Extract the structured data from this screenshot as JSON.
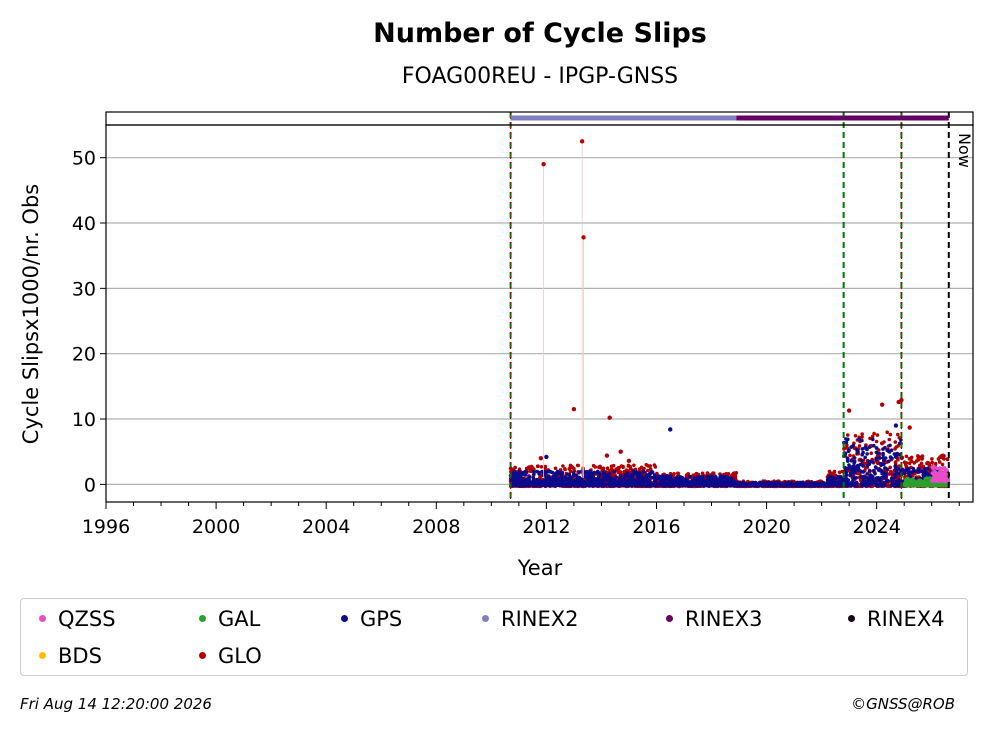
{
  "footer": {
    "timestamp": "Fri Aug 14 12:20:00 2026",
    "credit": "©GNSS@ROB"
  },
  "colors": {
    "QZSS": "#e84cc8",
    "GAL": "#2ca02c",
    "GPS": "#0b0b8c",
    "RINEX2": "#8080c0",
    "RINEX3": "#660066",
    "RINEX4": "#1a001a",
    "BDS": "#ffbf00",
    "GLO": "#b30000",
    "event_line": "#007700",
    "now_line": "#000000"
  },
  "chart_data": {
    "type": "scatter",
    "title": "Number of Cycle Slips",
    "subtitle": "FOAG00REU - IPGP-GNSS",
    "xlabel": "Year",
    "ylabel": "Cycle Slipsx1000/nr. Obs",
    "xlim": [
      1996,
      2027.5
    ],
    "ylim": [
      -2.7,
      55
    ],
    "xticks": [
      1996,
      2000,
      2004,
      2008,
      2012,
      2016,
      2020,
      2024
    ],
    "yticks": [
      0,
      10,
      20,
      30,
      40,
      50
    ],
    "grid": "horizontal",
    "legend_position": "bottom",
    "legend": [
      "QZSS",
      "GAL",
      "GPS",
      "RINEX2",
      "RINEX3",
      "RINEX4",
      "BDS",
      "GLO"
    ],
    "now_label": "Now",
    "now_x": 2026.62,
    "event_lines": [
      {
        "x": 2010.7,
        "style": "dashed",
        "color": "event_line"
      },
      {
        "x": 2022.8,
        "style": "dashed",
        "color": "event_line"
      },
      {
        "x": 2024.9,
        "style": "dashed",
        "color": "event_line"
      }
    ],
    "rinex_bars": [
      {
        "name": "RINEX2",
        "start": 2010.7,
        "end": 2018.9
      },
      {
        "name": "RINEX3",
        "start": 2018.9,
        "end": 2026.62
      }
    ],
    "outliers": [
      {
        "series": "GLO",
        "x": 2011.9,
        "y": 49
      },
      {
        "series": "GLO",
        "x": 2013.3,
        "y": 52.5
      },
      {
        "series": "GLO",
        "x": 2013.35,
        "y": 37.8
      },
      {
        "series": "GLO",
        "x": 2013.0,
        "y": 11.5
      },
      {
        "series": "GLO",
        "x": 2014.3,
        "y": 10.2
      },
      {
        "series": "GPS",
        "x": 2016.5,
        "y": 8.4
      },
      {
        "series": "GLO",
        "x": 2011.8,
        "y": 4.0
      },
      {
        "series": "GPS",
        "x": 2012.0,
        "y": 4.2
      },
      {
        "series": "GLO",
        "x": 2014.2,
        "y": 4.4
      },
      {
        "series": "GLO",
        "x": 2014.7,
        "y": 5.0
      },
      {
        "series": "GLO",
        "x": 2015.0,
        "y": 3.6
      },
      {
        "series": "GLO",
        "x": 2023.0,
        "y": 11.3
      },
      {
        "series": "GLO",
        "x": 2024.2,
        "y": 12.2
      },
      {
        "series": "GLO",
        "x": 2024.8,
        "y": 12.6
      },
      {
        "series": "GLO",
        "x": 2024.9,
        "y": 12.9
      },
      {
        "series": "GLO",
        "x": 2025.2,
        "y": 8.7
      },
      {
        "series": "GPS",
        "x": 2024.7,
        "y": 9.0
      }
    ],
    "series_bands": [
      {
        "series": "GLO",
        "segments": [
          {
            "x0": 2010.7,
            "x1": 2016.0,
            "ymin": -0.3,
            "ymax": 3.0
          },
          {
            "x0": 2016.0,
            "x1": 2018.9,
            "ymin": -0.3,
            "ymax": 1.8
          },
          {
            "x0": 2018.9,
            "x1": 2022.2,
            "ymin": -0.3,
            "ymax": 0.5
          },
          {
            "x0": 2022.2,
            "x1": 2022.8,
            "ymin": -0.3,
            "ymax": 2.0
          },
          {
            "x0": 2022.8,
            "x1": 2024.9,
            "ymin": -0.3,
            "ymax": 8.0
          },
          {
            "x0": 2024.9,
            "x1": 2026.6,
            "ymin": -0.3,
            "ymax": 4.5
          }
        ]
      },
      {
        "series": "GPS",
        "segments": [
          {
            "x0": 2010.7,
            "x1": 2016.0,
            "ymin": -0.2,
            "ymax": 2.0
          },
          {
            "x0": 2016.0,
            "x1": 2018.9,
            "ymin": -0.2,
            "ymax": 1.3
          },
          {
            "x0": 2018.9,
            "x1": 2022.2,
            "ymin": -0.2,
            "ymax": 0.3
          },
          {
            "x0": 2022.2,
            "x1": 2022.8,
            "ymin": -0.2,
            "ymax": 1.2
          },
          {
            "x0": 2022.8,
            "x1": 2024.9,
            "ymin": -0.2,
            "ymax": 7.0
          },
          {
            "x0": 2024.9,
            "x1": 2026.6,
            "ymin": -0.2,
            "ymax": 2.5
          }
        ]
      },
      {
        "series": "GAL",
        "segments": [
          {
            "x0": 2025.0,
            "x1": 2026.6,
            "ymin": -0.2,
            "ymax": 1.0
          }
        ]
      },
      {
        "series": "QZSS",
        "segments": [
          {
            "x0": 2026.0,
            "x1": 2026.6,
            "ymin": 0.5,
            "ymax": 2.8
          }
        ]
      }
    ]
  }
}
